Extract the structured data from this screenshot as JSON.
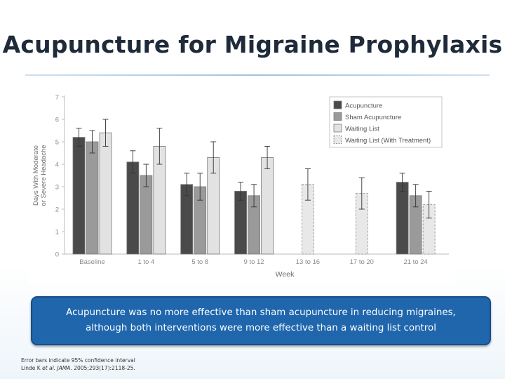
{
  "slide": {
    "title": "Acupuncture for Migraine Prophylaxis",
    "callout": {
      "line1": "Acupuncture was no more effective than sham acupuncture in reducing migraines,",
      "line2": "although both interventions were more effective than a waiting list control"
    },
    "footnote": {
      "line1": "Error bars indicate 95% confidence interval",
      "authors": "Linde K ",
      "etal": "et al.",
      "journal": "JAMA",
      "citation": ". 2005;293(17):2118-25."
    }
  },
  "colors": {
    "acupuncture": "#4a4a4a",
    "sham": "#9a9a9a",
    "waiting": "#e2e2e2",
    "waiting_treat": "#e8e8e8",
    "callout_bg": "#1f66ad"
  },
  "chart_data": {
    "type": "bar",
    "title": "",
    "xlabel": "Week",
    "ylabel_lines": [
      "Days With Moderate",
      "or Severe Headache"
    ],
    "ylim": [
      0,
      7
    ],
    "yticks": [
      0,
      1,
      2,
      3,
      4,
      5,
      6,
      7
    ],
    "categories": [
      "Baseline",
      "1 to 4",
      "5 to 8",
      "9 to 12",
      "13 to 16",
      "17 to 20",
      "21 to 24"
    ],
    "series": [
      {
        "name": "Acupuncture",
        "style": "solid",
        "color": "#4a4a4a",
        "values": [
          5.2,
          4.1,
          3.1,
          2.8,
          null,
          null,
          3.2
        ],
        "ci_low": [
          4.8,
          3.6,
          2.6,
          2.4,
          null,
          null,
          2.8
        ],
        "ci_high": [
          5.6,
          4.6,
          3.6,
          3.2,
          null,
          null,
          3.6
        ]
      },
      {
        "name": "Sham Acupuncture",
        "style": "solid",
        "color": "#9a9a9a",
        "values": [
          5.0,
          3.5,
          3.0,
          2.6,
          null,
          null,
          2.6
        ],
        "ci_low": [
          4.5,
          3.0,
          2.4,
          2.1,
          null,
          null,
          2.1
        ],
        "ci_high": [
          5.5,
          4.0,
          3.6,
          3.1,
          null,
          null,
          3.1
        ]
      },
      {
        "name": "Waiting List",
        "style": "solid",
        "color": "#e2e2e2",
        "values": [
          5.4,
          4.8,
          4.3,
          4.3,
          null,
          null,
          null
        ],
        "ci_low": [
          4.8,
          4.0,
          3.6,
          3.8,
          null,
          null,
          null
        ],
        "ci_high": [
          6.0,
          5.6,
          5.0,
          4.8,
          null,
          null,
          null
        ]
      },
      {
        "name": "Waiting List (With Treatment)",
        "style": "dashed",
        "color": "#e8e8e8",
        "values": [
          null,
          null,
          null,
          null,
          3.1,
          2.7,
          2.2
        ],
        "ci_low": [
          null,
          null,
          null,
          null,
          2.4,
          2.0,
          1.6
        ],
        "ci_high": [
          null,
          null,
          null,
          null,
          3.8,
          3.4,
          2.8
        ]
      }
    ],
    "legend_position": "top-right"
  }
}
